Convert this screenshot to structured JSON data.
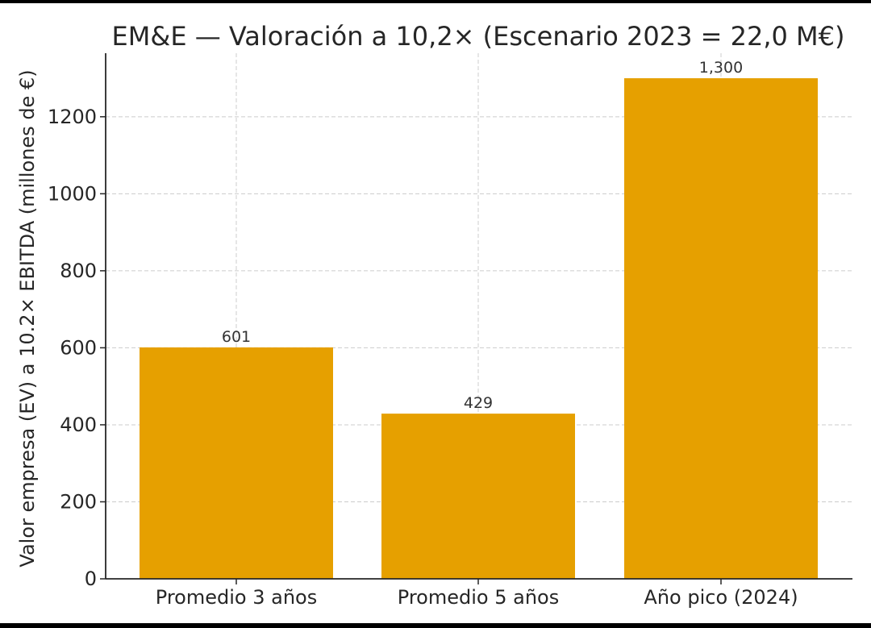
{
  "chart_data": {
    "type": "bar",
    "title": "EM&E — Valoración a 10,2× (Escenario 2023 = 22,0 M€)",
    "xlabel": "",
    "ylabel": "Valor empresa (EV) a 10.2× EBITDA (millones de €)",
    "categories": [
      "Promedio 3 años",
      "Promedio 5 años",
      "Año pico (2024)"
    ],
    "values": [
      601,
      429,
      1300
    ],
    "value_labels": [
      "601",
      "429",
      "1,300"
    ],
    "ylim": [
      0,
      1365
    ],
    "yticks": [
      0,
      200,
      400,
      600,
      800,
      1000,
      1200
    ],
    "ytick_labels": [
      "0",
      "200",
      "400",
      "600",
      "800",
      "1000",
      "1200"
    ],
    "grid": true,
    "colors": {
      "bar": "#E6A000",
      "grid": "#cccccc",
      "axis": "#262626"
    }
  }
}
